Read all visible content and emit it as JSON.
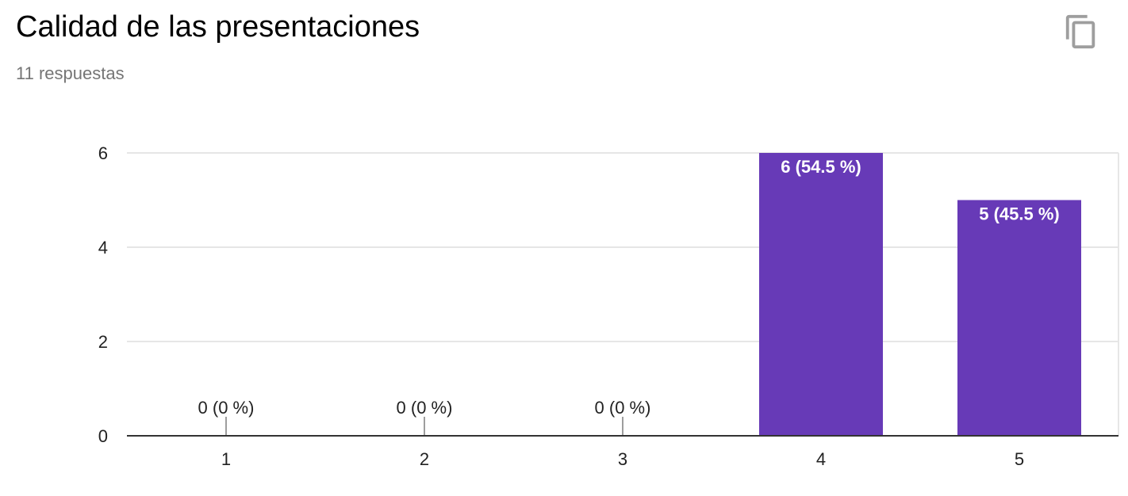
{
  "header": {
    "title": "Calidad de las presentaciones",
    "subtitle": "11 respuestas",
    "copy_icon": "copy-icon"
  },
  "colors": {
    "bar": "#673ab7",
    "bar_label": "#ffffff",
    "zero_label": "#222222",
    "gridline": "#e6e6e6",
    "axis": "#333333",
    "tick_label": "#222222"
  },
  "chart_data": {
    "type": "bar",
    "categories": [
      "1",
      "2",
      "3",
      "4",
      "5"
    ],
    "values": [
      0,
      0,
      0,
      6,
      5
    ],
    "data_labels": [
      "0 (0 %)",
      "0 (0 %)",
      "0 (0 %)",
      "6 (54.5 %)",
      "5 (45.5 %)"
    ],
    "yticks": [
      0,
      2,
      4,
      6
    ],
    "ylim": [
      0,
      6
    ],
    "grid": true,
    "legend": "none"
  }
}
